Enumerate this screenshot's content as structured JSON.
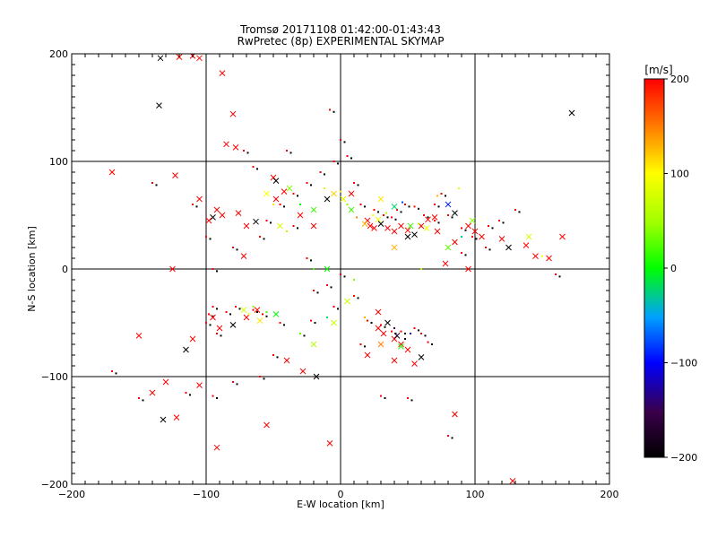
{
  "chart_data": {
    "type": "scatter",
    "title": "Tromsø 20171108 01:42:00-01:43:43",
    "subtitle": "RwPretec (8p) EXPERIMENTAL SKYMAP",
    "xlabel": "E-W location [km]",
    "ylabel": "N-S location [km]",
    "xlim": [
      -200,
      200
    ],
    "ylim": [
      -200,
      200
    ],
    "x_ticks": [
      "−200",
      "−100",
      "0",
      "100",
      "200"
    ],
    "y_ticks": [
      "−200",
      "−100",
      "0",
      "100",
      "200"
    ],
    "grid": true,
    "colorbar": {
      "label": "[m/s]",
      "range": [
        -200,
        200
      ],
      "ticks": [
        "200",
        "100",
        "0",
        "−100",
        "−200"
      ]
    },
    "points_cross": [
      [
        -134,
        196
      ],
      [
        -120,
        197
      ],
      [
        -110,
        198
      ],
      [
        -105,
        196
      ],
      [
        -88,
        182
      ],
      [
        -135,
        152
      ],
      [
        -80,
        144
      ],
      [
        -85,
        116
      ],
      [
        -78,
        113
      ],
      [
        -50,
        85
      ],
      [
        -48,
        82
      ],
      [
        -170,
        90
      ],
      [
        -123,
        87
      ],
      [
        -105,
        65
      ],
      [
        -92,
        55
      ],
      [
        -95,
        48
      ],
      [
        -98,
        45
      ],
      [
        -88,
        50
      ],
      [
        -76,
        52
      ],
      [
        -70,
        40
      ],
      [
        -63,
        44
      ],
      [
        -48,
        65
      ],
      [
        -42,
        72
      ],
      [
        -30,
        50
      ],
      [
        -20,
        40
      ],
      [
        -10,
        65
      ],
      [
        8,
        70
      ],
      [
        20,
        45
      ],
      [
        22,
        40
      ],
      [
        25,
        38
      ],
      [
        30,
        42
      ],
      [
        35,
        38
      ],
      [
        40,
        35
      ],
      [
        45,
        40
      ],
      [
        50,
        36
      ],
      [
        55,
        32
      ],
      [
        60,
        40
      ],
      [
        65,
        46
      ],
      [
        70,
        48
      ],
      [
        72,
        35
      ],
      [
        85,
        52
      ],
      [
        95,
        40
      ],
      [
        100,
        35
      ],
      [
        105,
        30
      ],
      [
        120,
        28
      ],
      [
        125,
        20
      ],
      [
        138,
        22
      ],
      [
        145,
        12
      ],
      [
        155,
        10
      ],
      [
        165,
        30
      ],
      [
        172,
        145
      ],
      [
        -125,
        0
      ],
      [
        -72,
        12
      ],
      [
        -95,
        -45
      ],
      [
        -90,
        -55
      ],
      [
        -80,
        -52
      ],
      [
        -70,
        -45
      ],
      [
        -62,
        -38
      ],
      [
        -150,
        -62
      ],
      [
        -110,
        -65
      ],
      [
        -115,
        -75
      ],
      [
        -130,
        -105
      ],
      [
        -140,
        -115
      ],
      [
        -105,
        -108
      ],
      [
        -122,
        -138
      ],
      [
        -132,
        -140
      ],
      [
        -55,
        -145
      ],
      [
        -92,
        -166
      ],
      [
        -40,
        -85
      ],
      [
        -28,
        -95
      ],
      [
        -18,
        -100
      ],
      [
        -8,
        -162
      ],
      [
        20,
        -80
      ],
      [
        28,
        -55
      ],
      [
        32,
        -60
      ],
      [
        35,
        -50
      ],
      [
        40,
        -65
      ],
      [
        45,
        -70
      ],
      [
        50,
        -75
      ],
      [
        55,
        -88
      ],
      [
        60,
        -82
      ],
      [
        85,
        -135
      ],
      [
        128,
        -197
      ],
      [
        28,
        -40
      ],
      [
        40,
        -85
      ],
      [
        50,
        30
      ],
      [
        85,
        25
      ],
      [
        78,
        5
      ],
      [
        95,
        0
      ]
    ],
    "points_dot": [
      [
        -140,
        80
      ],
      [
        -110,
        60
      ],
      [
        -100,
        30
      ],
      [
        -95,
        0
      ],
      [
        -80,
        20
      ],
      [
        -60,
        30
      ],
      [
        -55,
        45
      ],
      [
        -45,
        60
      ],
      [
        -35,
        70
      ],
      [
        -25,
        80
      ],
      [
        -15,
        90
      ],
      [
        -5,
        100
      ],
      [
        0,
        120
      ],
      [
        10,
        80
      ],
      [
        15,
        60
      ],
      [
        25,
        55
      ],
      [
        32,
        50
      ],
      [
        38,
        48
      ],
      [
        42,
        55
      ],
      [
        48,
        60
      ],
      [
        55,
        58
      ],
      [
        62,
        50
      ],
      [
        70,
        45
      ],
      [
        80,
        50
      ],
      [
        90,
        38
      ],
      [
        98,
        30
      ],
      [
        110,
        40
      ],
      [
        118,
        45
      ],
      [
        -95,
        -35
      ],
      [
        -98,
        -42
      ],
      [
        -100,
        -50
      ],
      [
        -92,
        -60
      ],
      [
        -85,
        -40
      ],
      [
        -78,
        -35
      ],
      [
        -65,
        -38
      ],
      [
        -58,
        -42
      ],
      [
        -45,
        -50
      ],
      [
        -20,
        -20
      ],
      [
        -10,
        -15
      ],
      [
        0,
        -5
      ],
      [
        -5,
        -35
      ],
      [
        10,
        -25
      ],
      [
        20,
        -48
      ],
      [
        30,
        -52
      ],
      [
        38,
        -58
      ],
      [
        45,
        -58
      ],
      [
        55,
        -55
      ],
      [
        60,
        -60
      ],
      [
        65,
        -68
      ],
      [
        -170,
        -95
      ],
      [
        -150,
        -120
      ],
      [
        -115,
        -115
      ],
      [
        -95,
        -118
      ],
      [
        -80,
        -105
      ],
      [
        -60,
        -100
      ],
      [
        -50,
        -80
      ],
      [
        -30,
        -60
      ],
      [
        -22,
        -48
      ],
      [
        15,
        -70
      ],
      [
        30,
        -118
      ],
      [
        80,
        -155
      ],
      [
        50,
        -120
      ],
      [
        -8,
        148
      ],
      [
        -35,
        40
      ],
      [
        -25,
        10
      ],
      [
        70,
        60
      ],
      [
        75,
        70
      ],
      [
        90,
        15
      ],
      [
        108,
        20
      ],
      [
        130,
        55
      ],
      [
        160,
        -5
      ],
      [
        -72,
        110
      ],
      [
        -65,
        95
      ],
      [
        -40,
        110
      ],
      [
        5,
        105
      ]
    ],
    "points_colored": [
      [
        -55,
        70,
        100
      ],
      [
        -50,
        60,
        110
      ],
      [
        -45,
        40,
        80
      ],
      [
        -40,
        35,
        60
      ],
      [
        -38,
        75,
        40
      ],
      [
        -30,
        60,
        0
      ],
      [
        -20,
        55,
        20
      ],
      [
        -12,
        75,
        80
      ],
      [
        -5,
        70,
        120
      ],
      [
        0,
        72,
        110
      ],
      [
        2,
        65,
        90
      ],
      [
        5,
        60,
        40
      ],
      [
        8,
        55,
        20
      ],
      [
        12,
        48,
        150
      ],
      [
        18,
        42,
        130
      ],
      [
        24,
        50,
        100
      ],
      [
        28,
        46,
        90
      ],
      [
        34,
        52,
        60
      ],
      [
        40,
        58,
        -20
      ],
      [
        46,
        62,
        -80
      ],
      [
        52,
        40,
        20
      ],
      [
        58,
        42,
        60
      ],
      [
        64,
        38,
        90
      ],
      [
        72,
        68,
        130
      ],
      [
        80,
        60,
        -90
      ],
      [
        88,
        75,
        80
      ],
      [
        98,
        45,
        40
      ],
      [
        -68,
        -42,
        100
      ],
      [
        -72,
        -38,
        80
      ],
      [
        -65,
        -35,
        40
      ],
      [
        -60,
        -48,
        110
      ],
      [
        -55,
        -40,
        20
      ],
      [
        -48,
        -42,
        0
      ],
      [
        -30,
        -60,
        30
      ],
      [
        -20,
        -70,
        60
      ],
      [
        -10,
        -45,
        -20
      ],
      [
        5,
        -30,
        70
      ],
      [
        18,
        -45,
        130
      ],
      [
        30,
        -70,
        150
      ],
      [
        40,
        -55,
        -150
      ],
      [
        42,
        -62,
        -180
      ],
      [
        48,
        -65,
        -200
      ],
      [
        45,
        -72,
        10
      ],
      [
        52,
        -60,
        -110
      ],
      [
        140,
        30,
        80
      ],
      [
        150,
        12,
        100
      ],
      [
        80,
        20,
        30
      ],
      [
        90,
        30,
        -30
      ],
      [
        -10,
        0,
        0
      ],
      [
        10,
        -10,
        40
      ],
      [
        -5,
        -50,
        70
      ],
      [
        -20,
        0,
        20
      ],
      [
        30,
        65,
        110
      ],
      [
        60,
        0,
        60
      ],
      [
        40,
        20,
        130
      ]
    ]
  }
}
